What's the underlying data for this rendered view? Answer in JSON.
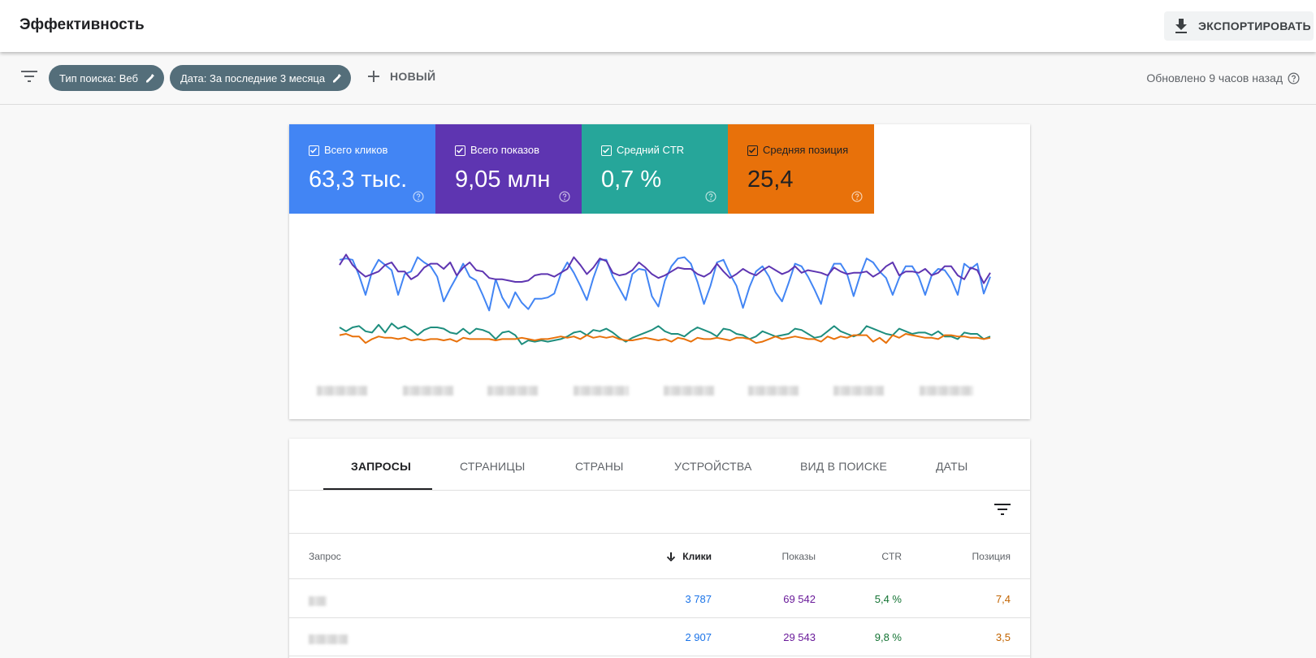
{
  "header": {
    "title": "Эффективность",
    "export_label": "ЭКСПОРТИРОВАТЬ"
  },
  "filters": {
    "chips": [
      "Тип поиска: Веб",
      "Дата: За последние 3 месяца"
    ],
    "new_label": "НОВЫЙ",
    "updated": "Обновлено 9 часов назад"
  },
  "metrics": [
    {
      "label": "Всего кликов",
      "value": "63,3 тыс.",
      "color": "#4285f4",
      "checked": true
    },
    {
      "label": "Всего показов",
      "value": "9,05 млн",
      "color": "#5e35b1",
      "checked": true
    },
    {
      "label": "Средний CTR",
      "value": "0,7 %",
      "color": "#26a69a",
      "checked": true
    },
    {
      "label": "Средняя позиция",
      "value": "25,4",
      "color": "#e8710a",
      "checked": true
    }
  ],
  "chart_data": {
    "type": "line",
    "x_labels_visible": false,
    "y_axis_visible": false,
    "grid": false,
    "series": [
      {
        "name": "Всего кликов",
        "color": "#4285f4",
        "values": [
          82,
          83,
          82,
          70,
          55,
          73,
          82,
          78,
          74,
          55,
          71,
          73,
          84,
          80,
          77,
          69,
          50,
          60,
          69,
          79,
          69,
          66,
          55,
          43,
          67,
          53,
          45,
          57,
          49,
          44,
          52,
          52,
          53,
          56,
          71,
          80,
          72,
          62,
          51,
          68,
          82,
          82,
          69,
          60,
          51,
          71,
          75,
          74,
          54,
          46,
          66,
          77,
          83,
          84,
          79,
          65,
          48,
          62,
          80,
          82,
          71,
          62,
          45,
          61,
          73,
          77,
          69,
          57,
          50,
          64,
          79,
          77,
          69,
          59,
          48,
          69,
          79,
          79,
          71,
          54,
          70,
          83,
          80,
          73,
          68,
          55,
          68,
          77,
          77,
          69,
          55,
          70,
          75,
          74,
          67,
          55,
          79,
          75,
          79,
          56,
          69
        ]
      },
      {
        "name": "Всего показов",
        "color": "#5e35b1",
        "values": [
          78,
          86,
          78,
          73,
          69,
          71,
          73,
          78,
          80,
          73,
          73,
          67,
          70,
          76,
          79,
          79,
          75,
          80,
          70,
          76,
          80,
          74,
          73,
          68,
          67,
          67,
          66,
          65,
          65,
          66,
          70,
          71,
          71,
          69,
          72,
          75,
          84,
          78,
          71,
          76,
          83,
          81,
          72,
          70,
          71,
          74,
          80,
          76,
          71,
          68,
          70,
          73,
          76,
          75,
          75,
          71,
          69,
          72,
          79,
          73,
          68,
          71,
          75,
          72,
          70,
          74,
          77,
          74,
          71,
          73,
          77,
          72,
          74,
          73,
          72,
          70,
          76,
          73,
          71,
          72,
          72,
          73,
          69,
          72,
          77,
          80,
          70,
          73,
          73,
          72,
          75,
          70,
          72,
          77,
          77,
          70,
          67,
          76,
          74,
          64,
          72
        ]
      },
      {
        "name": "Средний CTR",
        "color": "#1e8e7e",
        "values": [
          30,
          27,
          30,
          31,
          27,
          26,
          32,
          26,
          33,
          29,
          31,
          28,
          24,
          28,
          30,
          30,
          29,
          26,
          25,
          29,
          25,
          29,
          28,
          26,
          21,
          26,
          27,
          24,
          17,
          20,
          19,
          20,
          19,
          20,
          21,
          23,
          26,
          27,
          24,
          28,
          27,
          29,
          26,
          22,
          19,
          22,
          24,
          26,
          28,
          31,
          27,
          25,
          25,
          23,
          27,
          30,
          28,
          26,
          23,
          29,
          28,
          25,
          24,
          21,
          23,
          27,
          25,
          23,
          24,
          25,
          29,
          28,
          25,
          22,
          23,
          27,
          31,
          27,
          25,
          23,
          25,
          31,
          29,
          27,
          25,
          24,
          29,
          27,
          25,
          26,
          26,
          24,
          27,
          23,
          23,
          21,
          26,
          25,
          25,
          21,
          23
        ]
      },
      {
        "name": "Средняя позиция",
        "color": "#e8710a",
        "values": [
          24,
          25,
          23,
          23,
          18,
          21,
          23,
          22,
          22,
          21,
          22,
          20,
          21,
          20,
          21,
          21,
          20,
          21,
          19,
          22,
          21,
          21,
          21,
          21,
          20,
          21,
          21,
          21,
          22,
          21,
          20,
          21,
          21,
          22,
          23,
          22,
          23,
          21,
          24,
          22,
          23,
          22,
          23,
          21,
          20,
          20,
          21,
          22,
          21,
          20,
          21,
          19,
          22,
          21,
          19,
          22,
          21,
          21,
          22,
          21,
          20,
          22,
          22,
          21,
          18,
          19,
          21,
          23,
          21,
          22,
          23,
          22,
          21,
          21,
          19,
          23,
          21,
          23,
          22,
          24,
          24,
          24,
          19,
          22,
          18,
          24,
          22,
          25,
          24,
          23,
          22,
          22,
          21,
          24,
          24,
          23,
          23,
          22,
          22,
          21,
          22
        ]
      }
    ]
  },
  "tabs": [
    "ЗАПРОСЫ",
    "СТРАНИЦЫ",
    "СТРАНЫ",
    "УСТРОЙСТВА",
    "ВИД В ПОИСКЕ",
    "ДАТЫ"
  ],
  "table": {
    "headers": [
      "Запрос",
      "Клики",
      "Показы",
      "CTR",
      "Позиция"
    ],
    "rows": [
      {
        "clicks": "3 787",
        "impressions": "69 542",
        "ctr": "5,4 %",
        "position": "7,4"
      },
      {
        "clicks": "2 907",
        "impressions": "29 543",
        "ctr": "9,8 %",
        "position": "3,5"
      }
    ]
  },
  "colors": {
    "clicks": "#1a73e8",
    "impressions": "#6a1b9a",
    "ctr": "#137333",
    "position": "#c26401"
  }
}
